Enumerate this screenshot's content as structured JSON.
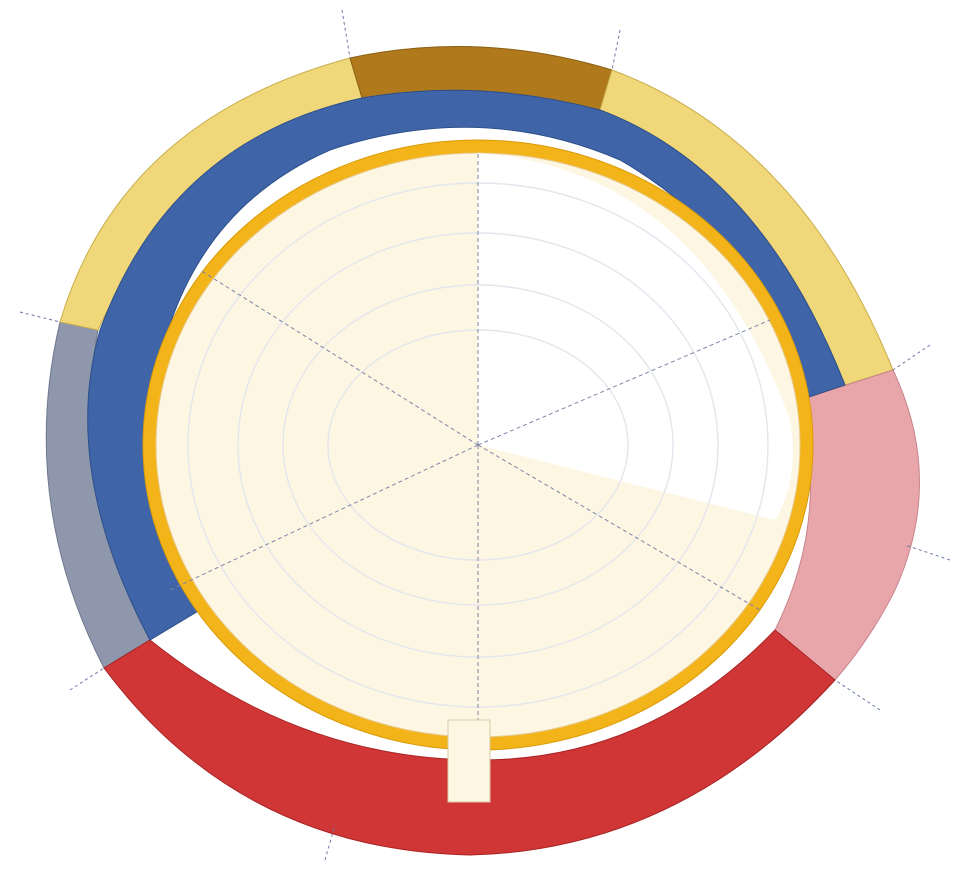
{
  "colors": {
    "top_dark": "#b07a1c",
    "top_yellow": "#f0d779",
    "blue": "#3f65a8",
    "grey": "#8e97ab",
    "pink": "#e8a6ab",
    "red": "#d13636",
    "gold": "#f3b41a",
    "court": "#fdf6e3"
  },
  "diagram": {
    "type": "stadium-seating-plan",
    "sections": [
      {
        "name": "top-center",
        "color": "#b07a1c"
      },
      {
        "name": "upper-left",
        "color": "#f0d779"
      },
      {
        "name": "upper-right",
        "color": "#f0d779"
      },
      {
        "name": "left",
        "color": "#8e97ab"
      },
      {
        "name": "right",
        "color": "#e8a6ab"
      },
      {
        "name": "bottom",
        "color": "#d13636"
      }
    ]
  }
}
